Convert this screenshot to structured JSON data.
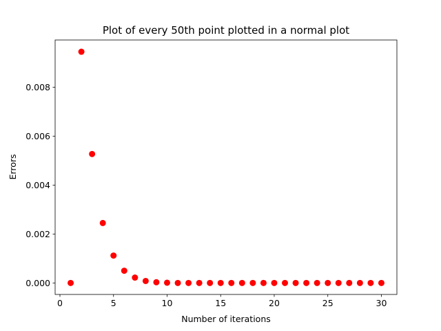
{
  "chart_data": {
    "type": "scatter",
    "title": "Plot of every 50th point plotted in a normal plot",
    "xlabel": "Number of iterations",
    "ylabel": "Errors",
    "xlim": [
      -0.45,
      31.45
    ],
    "ylim": [
      -0.00047,
      0.00993
    ],
    "xticks": [
      0,
      5,
      10,
      15,
      20,
      25,
      30
    ],
    "xtick_labels": [
      "0",
      "5",
      "10",
      "15",
      "20",
      "25",
      "30"
    ],
    "yticks": [
      0.0,
      0.002,
      0.004,
      0.006,
      0.008
    ],
    "ytick_labels": [
      "0.000",
      "0.002",
      "0.004",
      "0.006",
      "0.008"
    ],
    "grid": false,
    "marker_color": "#ff0000",
    "x": [
      1,
      2,
      3,
      4,
      5,
      6,
      7,
      8,
      9,
      10,
      11,
      12,
      13,
      14,
      15,
      16,
      17,
      18,
      19,
      20,
      21,
      22,
      23,
      24,
      25,
      26,
      27,
      28,
      29,
      30
    ],
    "y": [
      0.0,
      0.00945,
      0.00527,
      0.00245,
      0.00112,
      0.0005,
      0.00022,
      8e-05,
      3e-05,
      1e-05,
      0.0,
      0.0,
      0.0,
      0.0,
      0.0,
      0.0,
      0.0,
      0.0,
      0.0,
      0.0,
      0.0,
      0.0,
      0.0,
      0.0,
      0.0,
      0.0,
      0.0,
      0.0,
      0.0,
      0.0
    ]
  }
}
